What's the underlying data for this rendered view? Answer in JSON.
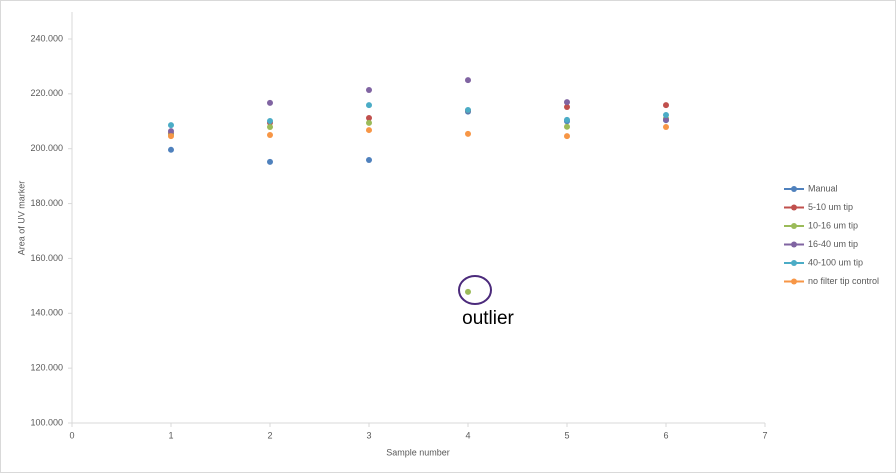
{
  "chart_data": {
    "type": "scatter",
    "x_label": "Sample number",
    "y_label": "Area of UV marker",
    "x": [
      1,
      2,
      3,
      4,
      5,
      6
    ],
    "xlim": [
      0,
      7
    ],
    "xticks": [
      0,
      1,
      2,
      3,
      4,
      5,
      6,
      7
    ],
    "ylim": [
      100000,
      240000
    ],
    "yticks": [
      {
        "value": 100000,
        "label": "100.000"
      },
      {
        "value": 120000,
        "label": "120.000"
      },
      {
        "value": 140000,
        "label": "140.000"
      },
      {
        "value": 160000,
        "label": "160.000"
      },
      {
        "value": 180000,
        "label": "180.000"
      },
      {
        "value": 200000,
        "label": "200.000"
      },
      {
        "value": 220000,
        "label": "220.000"
      },
      {
        "value": 240000,
        "label": "240.000"
      }
    ],
    "grid": false,
    "legend": "right",
    "series": [
      {
        "name": "Manual",
        "color": "#4f81bd",
        "values": [
          199600,
          195200,
          195900,
          213500,
          210000,
          210400
        ]
      },
      {
        "name": "5-10 um tip",
        "color": "#c0504d",
        "values": [
          205600,
          209500,
          211200,
          214000,
          215200,
          215900
        ]
      },
      {
        "name": "10-16 um tip",
        "color": "#9bbb59",
        "values": [
          205000,
          207900,
          209400,
          147800,
          208000,
          211000
        ]
      },
      {
        "name": "16-40 um tip",
        "color": "#8064a2",
        "values": [
          206400,
          216700,
          221400,
          225000,
          217000,
          210500
        ]
      },
      {
        "name": "40-100 um tip",
        "color": "#4bacc6",
        "values": [
          208600,
          210100,
          215900,
          214100,
          210500,
          212300
        ]
      },
      {
        "name": "no filter tip control",
        "color": "#f79646",
        "values": [
          204600,
          205000,
          206800,
          205400,
          204600,
          207900
        ]
      }
    ],
    "annotation": "outlier"
  }
}
